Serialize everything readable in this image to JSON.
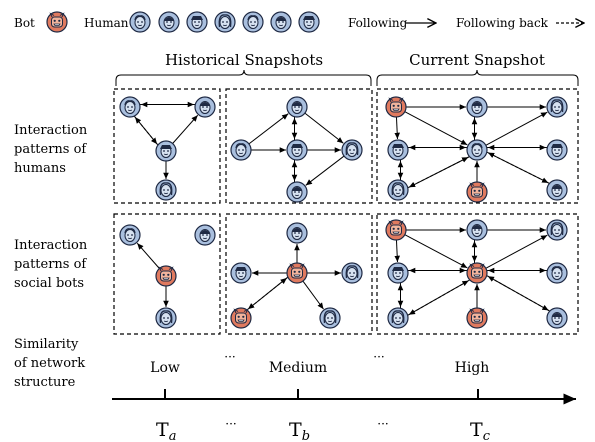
{
  "legend": {
    "bot_label": "Bot",
    "human_label": "Human",
    "following_label": "Following",
    "following_back_label": "Following back"
  },
  "headers": {
    "historical": "Historical Snapshots",
    "current": "Current Snapshot"
  },
  "row_labels": {
    "humans": [
      "Interaction",
      "patterns of",
      "humans"
    ],
    "bots": [
      "Interaction",
      "patterns of",
      "social bots"
    ],
    "similarity": [
      "Similarity",
      "of network",
      "structure"
    ]
  },
  "similarity_levels": {
    "low": "Low",
    "ellipsis": "···",
    "medium": "Medium",
    "high": "High"
  },
  "timeline": {
    "t_base": "T",
    "subscripts": [
      "a",
      "b",
      "c"
    ],
    "ellipsis": "···"
  },
  "colors": {
    "bot": "#e07a5f",
    "human": "#a9bfde",
    "outline": "#1f2a44",
    "line": "#000000"
  },
  "icons": {
    "bot": "bot-face-icon",
    "human": "human-face-icon",
    "following": "solid-arrow-icon",
    "following_back": "dashed-arrow-icon"
  }
}
